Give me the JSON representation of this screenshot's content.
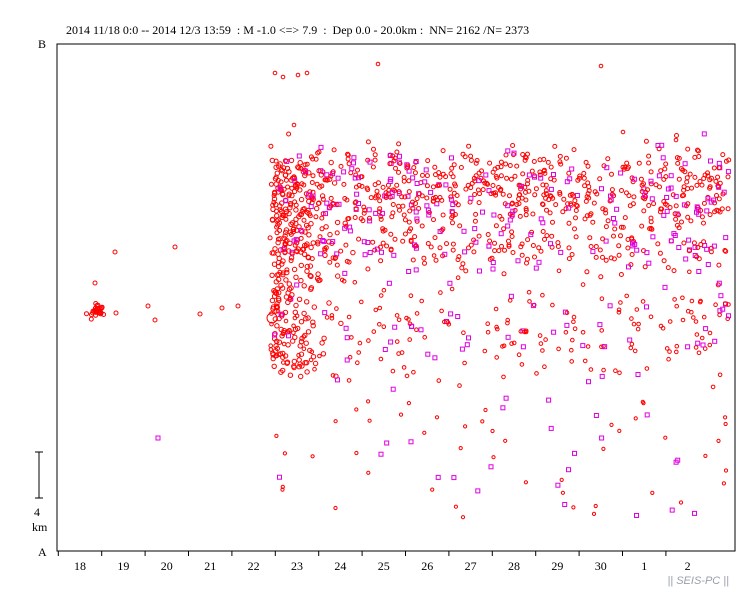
{
  "header": {
    "date_range": "2014 11/18 0:0 -- 2014 12/3 13:59",
    "magnitude": ": M -1.0 <=> 7.9",
    "depth": ":  Dep 0.0 - 20.0km :",
    "counts": "NN= 2162 /N= 2373"
  },
  "axis": {
    "top_label": "B",
    "bottom_label": "A"
  },
  "scale_bar": {
    "value": "4",
    "unit": "km"
  },
  "watermark": "|| SEIS-PC ||",
  "colors": {
    "primary_marker": "#ff0000",
    "secondary_marker": "#e000e0",
    "frame": "#000000"
  },
  "chart_data": {
    "type": "scatter",
    "title": "",
    "xlabel": "",
    "ylabel": "",
    "x_ticks": [
      "18",
      "19",
      "20",
      "21",
      "22",
      "23",
      "24",
      "25",
      "26",
      "27",
      "28",
      "29",
      "30",
      "1",
      "2"
    ],
    "x_range": [
      "2014-11-17 12:00",
      "2014-12-03 13:59"
    ],
    "y_range": [
      0,
      52
    ],
    "y_units": "km along profile A-B",
    "markers": [
      "circle (red)",
      "square (magenta)"
    ],
    "clusters": [
      {
        "day": "18",
        "center_km": 24.5,
        "note": "dense cluster"
      },
      {
        "day": "22-23",
        "center_km": 36,
        "note": "onset of dense activity"
      },
      {
        "day": "23-3",
        "center_km": 38,
        "note": "main band"
      },
      {
        "day": "23-3",
        "center_km": 22,
        "note": "scattered lower band"
      }
    ]
  }
}
